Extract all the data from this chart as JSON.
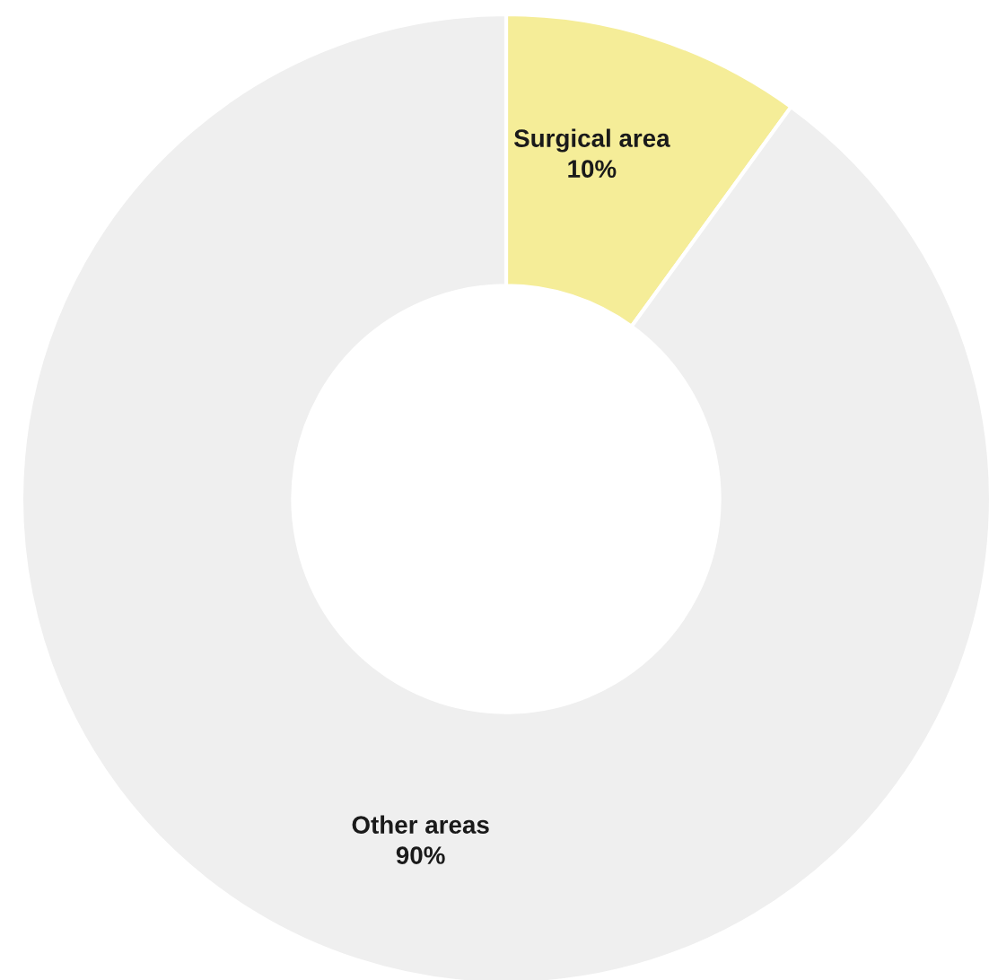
{
  "chart_data": {
    "type": "donut",
    "categories": [
      "Surgical area",
      "Other areas"
    ],
    "values": [
      10,
      90
    ],
    "colors": [
      "#f5ed98",
      "#efefef"
    ],
    "value_labels": [
      "10%",
      "90%"
    ],
    "legend": false
  }
}
